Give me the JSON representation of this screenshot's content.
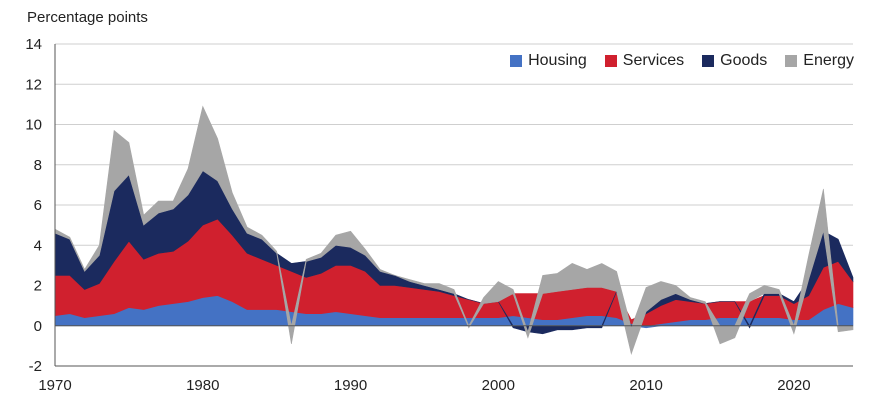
{
  "chart_data": {
    "type": "area",
    "title": "",
    "ylabel": "Percentage points",
    "xlabel": "",
    "ylim": [
      -2,
      14
    ],
    "xlim": [
      1970,
      2024
    ],
    "yticks": [
      -2,
      0,
      2,
      4,
      6,
      8,
      10,
      12,
      14
    ],
    "xticks": [
      1970,
      1980,
      1990,
      2000,
      2010,
      2020
    ],
    "grid": "horizontal",
    "legend_position": "top-right",
    "stacked": true,
    "x": [
      1970,
      1971,
      1972,
      1973,
      1974,
      1975,
      1976,
      1977,
      1978,
      1979,
      1980,
      1981,
      1982,
      1983,
      1984,
      1985,
      1986,
      1987,
      1988,
      1989,
      1990,
      1991,
      1992,
      1993,
      1994,
      1995,
      1996,
      1997,
      1998,
      1999,
      2000,
      2001,
      2002,
      2003,
      2004,
      2005,
      2006,
      2007,
      2008,
      2009,
      2010,
      2011,
      2012,
      2013,
      2014,
      2015,
      2016,
      2017,
      2018,
      2019,
      2020,
      2021,
      2022,
      2023,
      2024
    ],
    "series": [
      {
        "name": "Housing",
        "color": "#4472C4",
        "values": [
          0.5,
          0.6,
          0.4,
          0.5,
          0.6,
          0.9,
          0.8,
          1.0,
          1.1,
          1.2,
          1.4,
          1.5,
          1.2,
          0.8,
          0.8,
          0.8,
          0.7,
          0.6,
          0.6,
          0.7,
          0.6,
          0.5,
          0.4,
          0.4,
          0.4,
          0.4,
          0.4,
          0.4,
          0.4,
          0.4,
          0.4,
          0.5,
          0.4,
          0.3,
          0.3,
          0.4,
          0.5,
          0.5,
          0.4,
          0.1,
          -0.1,
          0.1,
          0.2,
          0.3,
          0.3,
          0.4,
          0.4,
          0.4,
          0.4,
          0.4,
          0.3,
          0.3,
          0.8,
          1.1,
          0.9
        ]
      },
      {
        "name": "Services",
        "color": "#D0202E",
        "values": [
          2.0,
          1.9,
          1.4,
          1.6,
          2.6,
          3.3,
          2.5,
          2.6,
          2.6,
          3.0,
          3.6,
          3.8,
          3.3,
          2.8,
          2.5,
          2.2,
          2.0,
          1.8,
          2.0,
          2.3,
          2.4,
          2.2,
          1.6,
          1.6,
          1.5,
          1.4,
          1.3,
          1.1,
          0.9,
          0.7,
          0.8,
          1.1,
          1.2,
          1.3,
          1.4,
          1.4,
          1.4,
          1.4,
          1.3,
          0.2,
          0.6,
          0.9,
          1.1,
          0.9,
          0.8,
          0.8,
          0.8,
          0.8,
          1.1,
          1.1,
          0.8,
          1.2,
          2.1,
          2.1,
          1.3
        ]
      },
      {
        "name": "Goods",
        "color": "#1B2A5E",
        "values": [
          2.1,
          1.8,
          0.9,
          1.4,
          3.5,
          3.3,
          1.7,
          2.0,
          2.1,
          2.3,
          2.7,
          1.9,
          1.3,
          1.0,
          1.0,
          0.6,
          0.4,
          0.8,
          0.8,
          1.0,
          0.9,
          0.8,
          0.7,
          0.5,
          0.3,
          0.2,
          0.1,
          0.1,
          0.0,
          0.0,
          0.0,
          -0.1,
          -0.3,
          -0.4,
          -0.2,
          -0.2,
          -0.1,
          -0.1,
          0.0,
          -0.1,
          0.1,
          0.3,
          0.3,
          0.1,
          0.0,
          0.0,
          0.0,
          -0.1,
          0.1,
          0.1,
          0.1,
          0.8,
          1.8,
          1.1,
          0.2
        ]
      },
      {
        "name": "Energy",
        "color": "#A6A6A6",
        "values": [
          0.2,
          0.1,
          0.1,
          0.5,
          3.0,
          1.6,
          0.5,
          0.6,
          0.4,
          1.3,
          3.2,
          2.1,
          0.8,
          0.3,
          0.2,
          0.1,
          -0.9,
          0.1,
          0.2,
          0.5,
          0.8,
          0.3,
          0.1,
          0.0,
          0.1,
          0.1,
          0.3,
          0.2,
          -0.1,
          0.3,
          1.0,
          0.2,
          -0.3,
          0.9,
          0.9,
          1.3,
          0.9,
          1.2,
          1.0,
          -1.3,
          1.2,
          0.9,
          0.4,
          0.1,
          0.1,
          -0.9,
          -0.6,
          0.4,
          0.4,
          0.2,
          -0.4,
          1.2,
          2.1,
          -0.3,
          -0.2
        ]
      }
    ]
  }
}
